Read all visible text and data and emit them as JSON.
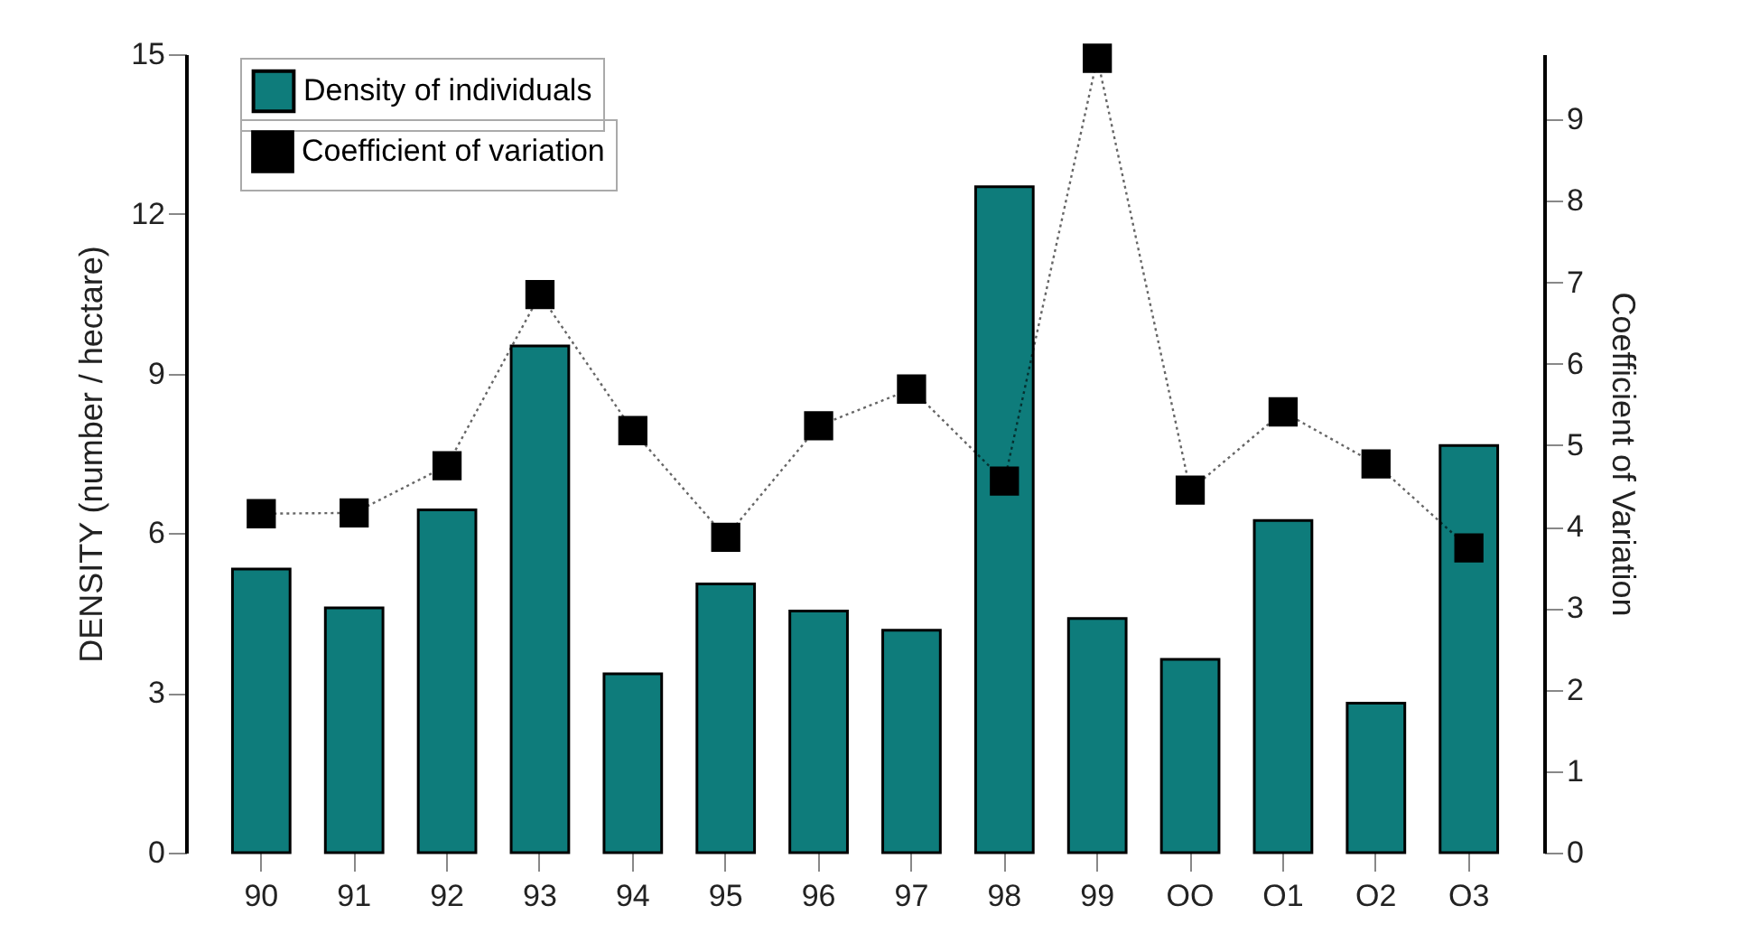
{
  "chart_data": {
    "type": "bar",
    "ylabel": "DENSITY (number / hectare)",
    "y2label": "Coefficient of Variation",
    "categories": [
      "90",
      "91",
      "92",
      "93",
      "94",
      "95",
      "96",
      "97",
      "98",
      "99",
      "OO",
      "O1",
      "O2",
      "O3"
    ],
    "series": [
      {
        "name": "Density of individuals",
        "color": "#0e7c7b",
        "values": [
          5.33,
          4.6,
          6.44,
          9.52,
          3.36,
          5.05,
          4.54,
          4.18,
          12.51,
          4.4,
          3.63,
          6.24,
          2.81,
          7.65
        ]
      },
      {
        "name": "Coefficient of variation",
        "type": "line",
        "axis": "y2",
        "color": "#000000",
        "marker": "square",
        "line_style": "dotted",
        "values": [
          4.16,
          4.17,
          4.75,
          6.85,
          5.18,
          3.87,
          5.24,
          5.69,
          4.56,
          9.75,
          4.45,
          5.41,
          4.77,
          3.74
        ]
      }
    ],
    "ylim": [
      0,
      15
    ],
    "yticks": [
      0,
      3,
      6,
      9,
      12,
      15
    ],
    "y2lim": [
      0,
      9.8
    ],
    "y2ticks": [
      0,
      1,
      2,
      3,
      4,
      5,
      6,
      7,
      8,
      9
    ],
    "grid": false,
    "legend": "top left"
  }
}
